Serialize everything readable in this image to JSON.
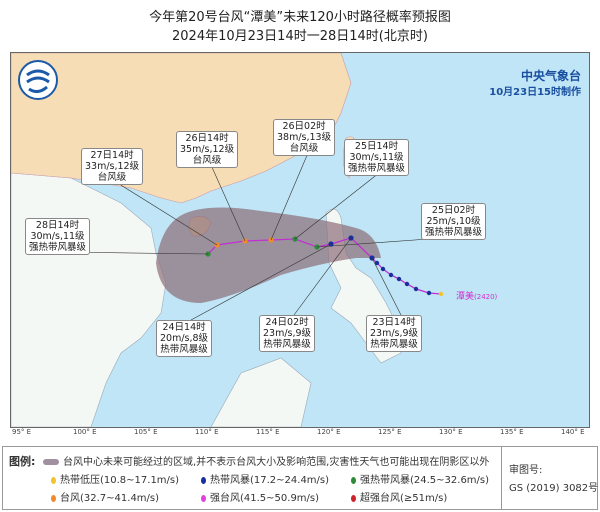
{
  "title": "今年第20号台风“潭美”未来120小时路径概率预报图",
  "subtitle": "2024年10月23日14时一28日14时(北京时)",
  "agency": {
    "name": "中央气象台",
    "issued": "10月23日15时制作"
  },
  "typhoon_label": "潭美",
  "typhoon_id": "(2420)",
  "forecast_points": [
    {
      "time": "28日14时",
      "wind": "30m/s,11级",
      "category": "强热带风暴级",
      "color": "#2e8b3a"
    },
    {
      "time": "27日14时",
      "wind": "33m/s,12级",
      "category": "台风级",
      "color": "#f08a2a"
    },
    {
      "time": "26日14时",
      "wind": "35m/s,12级",
      "category": "台风级",
      "color": "#f08a2a"
    },
    {
      "time": "26日02时",
      "wind": "38m/s,13级",
      "category": "台风级",
      "color": "#f08a2a"
    },
    {
      "time": "25日14时",
      "wind": "30m/s,11级",
      "category": "强热带风暴级",
      "color": "#2e8b3a"
    },
    {
      "time": "25日02时",
      "wind": "25m/s,10级",
      "category": "强热带风暴级",
      "color": "#2e8b3a"
    },
    {
      "time": "24日14时",
      "wind": "20m/s,8级",
      "category": "热带风暴级",
      "color": "#1a2f9e"
    },
    {
      "time": "24日02时",
      "wind": "23m/s,9级",
      "category": "热带风暴级",
      "color": "#1a2f9e"
    },
    {
      "time": "23日14时",
      "wind": "23m/s,9级",
      "category": "热带风暴级",
      "color": "#1a2f9e"
    }
  ],
  "axis_labels": [
    "95° E",
    "100° E",
    "105° E",
    "110° E",
    "115° E",
    "120° E",
    "125° E",
    "130° E",
    "135° E",
    "140° E"
  ],
  "legend": {
    "title": "图例:",
    "cone_text": "台风中心未来可能经过的区域,并不表示台风大小及影响范围,灾害性天气也可能出现在阴影区以外",
    "items": [
      {
        "label": "热带低压(10.8~17.1m/s)",
        "color": "#f2c230"
      },
      {
        "label": "热带风暴(17.2~24.4m/s)",
        "color": "#1a2f9e"
      },
      {
        "label": "强热带风暴(24.5~32.6m/s)",
        "color": "#2e8b3a"
      },
      {
        "label": "台风(32.7~41.4m/s)",
        "color": "#f08a2a"
      },
      {
        "label": "强台风(41.5~50.9m/s)",
        "color": "#e040e0"
      },
      {
        "label": "超强台风(≥51m/s)",
        "color": "#d0202a"
      }
    ],
    "approval_label": "审图号:",
    "approval_no": "GS (2019) 3082号"
  },
  "colors": {
    "sea": "#bfe5f6",
    "china_land": "#f6ddb5",
    "other_land": "#f4f8f4",
    "cone": "#8c6e78",
    "track": "#c030d0"
  }
}
